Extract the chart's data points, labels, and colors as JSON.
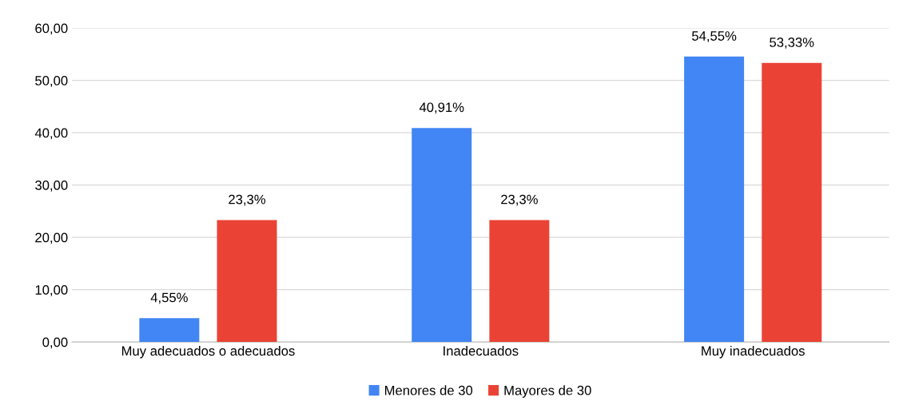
{
  "chart_data": {
    "type": "bar",
    "categories": [
      "Muy adecuados o adecuados",
      "Inadecuados",
      "Muy inadecuados"
    ],
    "series": [
      {
        "name": "Menores de 30",
        "color": "#4285f4",
        "values": [
          4.55,
          40.91,
          54.55
        ],
        "value_labels": [
          "4,55%",
          "40,91%",
          "54,55%"
        ]
      },
      {
        "name": "Mayores de 30",
        "color": "#ea4335",
        "values": [
          23.3,
          23.3,
          53.33
        ],
        "value_labels": [
          "23,3%",
          "23,3%",
          "53,33%"
        ]
      }
    ],
    "ylim": [
      0,
      60
    ],
    "yticks": [
      {
        "value": 0,
        "label": "0,00"
      },
      {
        "value": 10,
        "label": "10,00"
      },
      {
        "value": 20,
        "label": "20,00"
      },
      {
        "value": 30,
        "label": "30,00"
      },
      {
        "value": 40,
        "label": "40,00"
      },
      {
        "value": 50,
        "label": "50,00"
      },
      {
        "value": 60,
        "label": "60,00"
      }
    ],
    "grid": "y",
    "legend": "bottom"
  }
}
